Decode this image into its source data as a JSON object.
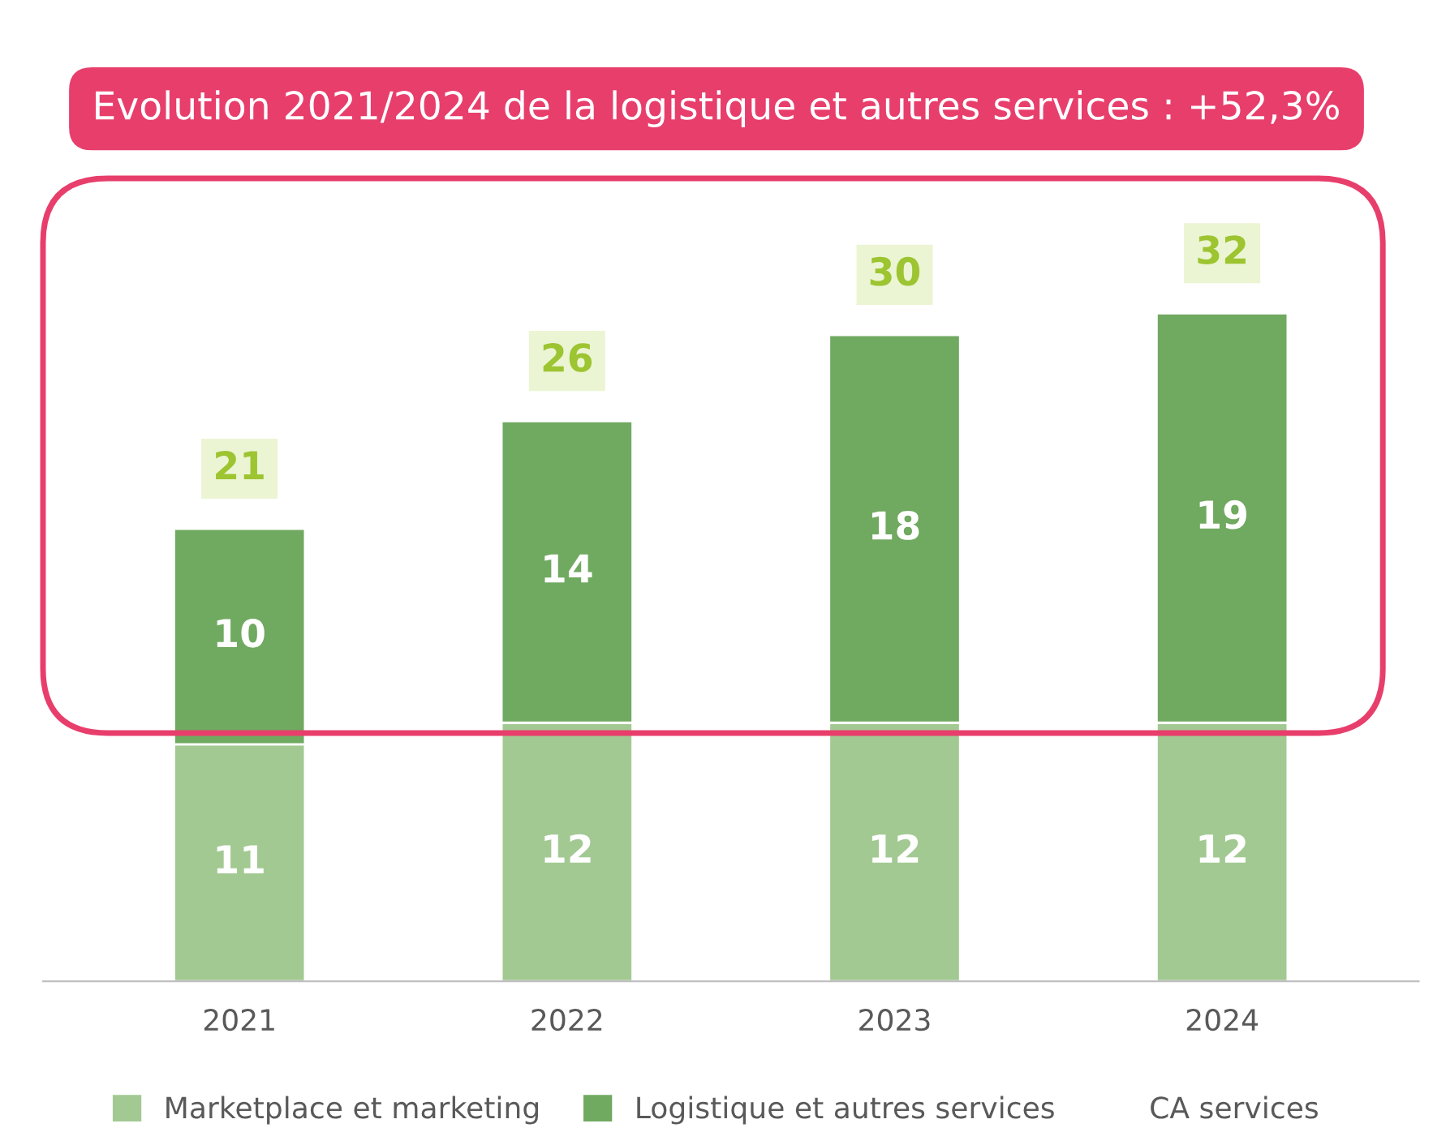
{
  "chart_data": {
    "type": "bar",
    "title": "Evolution 2021/2024 de la logistique et autres services : +52,3%",
    "categories": [
      "2021",
      "2022",
      "2023",
      "2024"
    ],
    "series": [
      {
        "name": "Marketplace et marketing",
        "color": "#a3c993",
        "values": [
          11,
          12,
          12,
          12
        ]
      },
      {
        "name": "Logistique et autres services",
        "color": "#70a960",
        "values": [
          10,
          14,
          18,
          19
        ]
      }
    ],
    "stacked": true,
    "data_labels": true,
    "totals": [
      "21",
      "26",
      "30",
      "32"
    ],
    "annotations": [
      "CA services"
    ],
    "legend": "bottom",
    "grid": false
  }
}
